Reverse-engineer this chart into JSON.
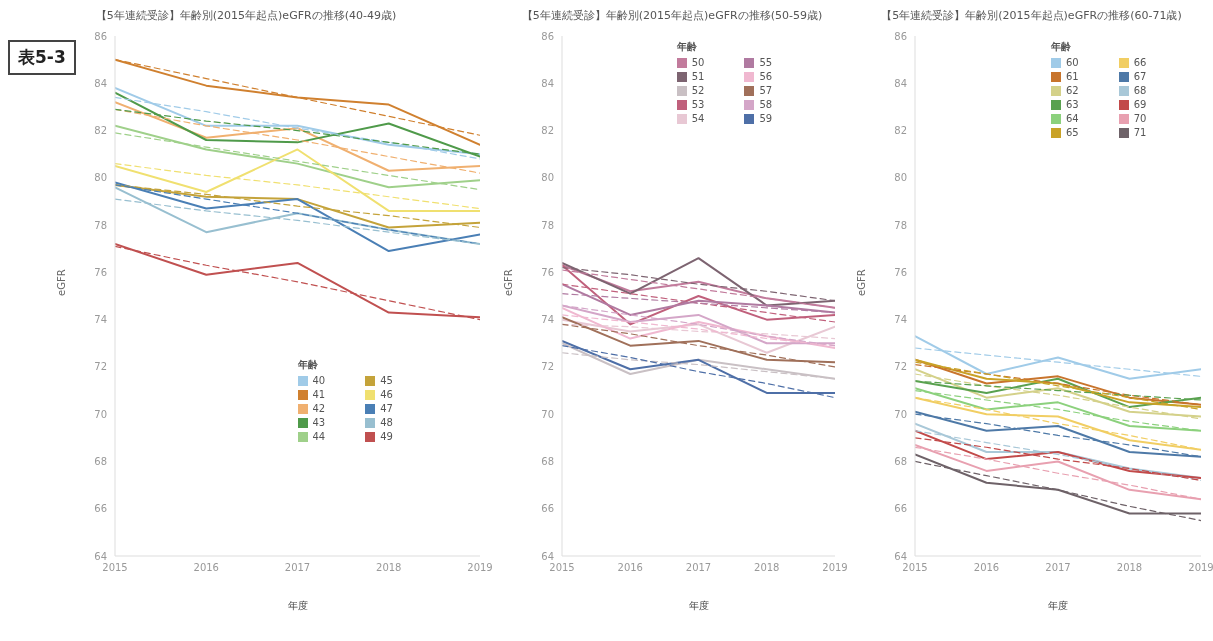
{
  "chart_data": [
    {
      "type": "line",
      "title": "【5年連続受診】年齢別(2015年起点)eGFRの推移(40-49歳)",
      "xlabel": "年度",
      "ylabel": "eGFR",
      "legend_title": "年齢",
      "legend": "bottom right",
      "annotations": [
        "表5-3"
      ],
      "x": [
        2015,
        2016,
        2017,
        2018,
        2019
      ],
      "xlim": [
        2015,
        2019
      ],
      "xticks": [
        2015,
        2016,
        2017,
        2018,
        2019
      ],
      "ylim": [
        64,
        86
      ],
      "yticks": [
        64,
        66,
        68,
        70,
        72,
        74,
        76,
        78,
        80,
        82,
        84,
        86
      ],
      "series": [
        {
          "name": "40",
          "color": "#a0cbe8",
          "values": [
            83.8,
            82.2,
            82.2,
            81.4,
            81.0
          ]
        },
        {
          "name": "41",
          "color": "#d0802f",
          "values": [
            85.0,
            83.9,
            83.4,
            83.1,
            81.4
          ]
        },
        {
          "name": "42",
          "color": "#f0b070",
          "values": [
            83.2,
            81.7,
            82.1,
            80.3,
            80.5
          ]
        },
        {
          "name": "43",
          "color": "#4f9a4a",
          "values": [
            83.6,
            81.6,
            81.5,
            82.3,
            80.9
          ]
        },
        {
          "name": "44",
          "color": "#9fd08a",
          "values": [
            82.2,
            81.2,
            80.6,
            79.6,
            79.9
          ]
        },
        {
          "name": "45",
          "color": "#c4a33a",
          "values": [
            79.7,
            79.2,
            79.1,
            77.9,
            78.1
          ]
        },
        {
          "name": "46",
          "color": "#f0e070",
          "values": [
            80.5,
            79.4,
            81.2,
            78.6,
            78.6
          ]
        },
        {
          "name": "47",
          "color": "#4a7fb5",
          "values": [
            79.8,
            78.7,
            79.1,
            76.9,
            77.6
          ]
        },
        {
          "name": "48",
          "color": "#98bfd0",
          "values": [
            79.6,
            77.7,
            78.5,
            77.8,
            77.2
          ]
        },
        {
          "name": "49",
          "color": "#c05050",
          "values": [
            77.2,
            75.9,
            76.4,
            74.3,
            74.1
          ]
        },
        {
          "color": "#a0cbe8",
          "line_style": "dashed",
          "values": [
            83.4,
            82.8,
            82.1,
            81.5,
            80.8
          ]
        },
        {
          "color": "#d0802f",
          "line_style": "dashed",
          "values": [
            85.0,
            84.2,
            83.4,
            82.6,
            81.8
          ]
        },
        {
          "color": "#f0b070",
          "line_style": "dashed",
          "values": [
            82.9,
            82.2,
            81.6,
            80.9,
            80.2
          ]
        },
        {
          "color": "#4f9a4a",
          "line_style": "dashed",
          "values": [
            82.9,
            82.4,
            82.0,
            81.5,
            81.0
          ]
        },
        {
          "color": "#9fd08a",
          "line_style": "dashed",
          "values": [
            81.9,
            81.3,
            80.7,
            80.1,
            79.5
          ]
        },
        {
          "color": "#c4a33a",
          "line_style": "dashed",
          "values": [
            79.7,
            79.3,
            78.8,
            78.4,
            77.9
          ]
        },
        {
          "color": "#f0e070",
          "line_style": "dashed",
          "values": [
            80.6,
            80.1,
            79.7,
            79.2,
            78.7
          ]
        },
        {
          "color": "#4a7fb5",
          "line_style": "dashed",
          "values": [
            79.7,
            79.1,
            78.5,
            77.8,
            77.2
          ]
        },
        {
          "color": "#98bfd0",
          "line_style": "dashed",
          "values": [
            79.1,
            78.6,
            78.2,
            77.7,
            77.2
          ]
        },
        {
          "color": "#c05050",
          "line_style": "dashed",
          "values": [
            77.1,
            76.3,
            75.6,
            74.8,
            74.0
          ]
        }
      ]
    },
    {
      "type": "line",
      "title": "【5年連続受診】年齢別(2015年起点)eGFRの推移(50-59歳)",
      "xlabel": "年度",
      "ylabel": "eGFR",
      "legend_title": "年齢",
      "legend": "top",
      "x": [
        2015,
        2016,
        2017,
        2018,
        2019
      ],
      "xlim": [
        2015,
        2019
      ],
      "xticks": [
        2015,
        2016,
        2017,
        2018,
        2019
      ],
      "ylim": [
        64,
        86
      ],
      "yticks": [
        64,
        66,
        68,
        70,
        72,
        74,
        76,
        78,
        80,
        82,
        84,
        86
      ],
      "series": [
        {
          "name": "50",
          "color": "#c27b9c",
          "values": [
            76.3,
            75.2,
            75.6,
            74.9,
            74.5
          ]
        },
        {
          "name": "51",
          "color": "#7d6471",
          "values": [
            76.4,
            75.1,
            76.6,
            74.6,
            74.8
          ]
        },
        {
          "name": "52",
          "color": "#c9c0c4",
          "values": [
            73.0,
            71.7,
            72.3,
            71.9,
            71.5
          ]
        },
        {
          "name": "53",
          "color": "#c0607c",
          "values": [
            76.3,
            73.8,
            75.0,
            74.0,
            74.2
          ]
        },
        {
          "name": "54",
          "color": "#e8c8d4",
          "values": [
            74.0,
            73.5,
            73.8,
            72.6,
            73.7
          ]
        },
        {
          "name": "55",
          "color": "#b07aa1",
          "values": [
            75.5,
            74.2,
            74.8,
            74.6,
            74.3
          ]
        },
        {
          "name": "56",
          "color": "#f0b8d0",
          "values": [
            74.5,
            73.2,
            73.9,
            73.3,
            72.8
          ]
        },
        {
          "name": "57",
          "color": "#a0705a",
          "values": [
            74.1,
            72.9,
            73.1,
            72.3,
            72.2
          ]
        },
        {
          "name": "58",
          "color": "#d4a6c8",
          "values": [
            74.6,
            73.9,
            74.2,
            73.0,
            73.0
          ]
        },
        {
          "name": "59",
          "color": "#4e6fa7",
          "values": [
            73.1,
            71.9,
            72.3,
            70.9,
            70.9
          ]
        },
        {
          "color": "#c27b9c",
          "line_style": "dashed",
          "values": [
            76.1,
            75.7,
            75.3,
            74.9,
            74.5
          ]
        },
        {
          "color": "#7d6471",
          "line_style": "dashed",
          "values": [
            76.2,
            75.9,
            75.5,
            75.2,
            74.8
          ]
        },
        {
          "color": "#c9c0c4",
          "line_style": "dashed",
          "values": [
            72.6,
            72.3,
            72.1,
            71.8,
            71.5
          ]
        },
        {
          "color": "#c0607c",
          "line_style": "dashed",
          "values": [
            75.5,
            75.1,
            74.7,
            74.3,
            73.9
          ]
        },
        {
          "color": "#e8c8d4",
          "line_style": "dashed",
          "values": [
            73.8,
            73.7,
            73.5,
            73.4,
            73.2
          ]
        },
        {
          "color": "#b07aa1",
          "line_style": "dashed",
          "values": [
            75.1,
            74.9,
            74.7,
            74.5,
            74.3
          ]
        },
        {
          "color": "#f0b8d0",
          "line_style": "dashed",
          "values": [
            74.2,
            73.9,
            73.6,
            73.2,
            72.9
          ]
        },
        {
          "color": "#a0705a",
          "line_style": "dashed",
          "values": [
            73.8,
            73.4,
            72.9,
            72.5,
            72.0
          ]
        },
        {
          "color": "#d4a6c8",
          "line_style": "dashed",
          "values": [
            74.6,
            74.2,
            73.8,
            73.3,
            72.9
          ]
        },
        {
          "color": "#4e6fa7",
          "line_style": "dashed",
          "values": [
            72.9,
            72.4,
            71.8,
            71.3,
            70.7
          ]
        }
      ]
    },
    {
      "type": "line",
      "title": "【5年連続受診】年齢別(2015年起点)eGFRの推移(60-71歳)",
      "xlabel": "年度",
      "ylabel": "eGFR",
      "legend_title": "年齢",
      "legend": "top right",
      "x": [
        2015,
        2016,
        2017,
        2018,
        2019
      ],
      "xlim": [
        2015,
        2019
      ],
      "xticks": [
        2015,
        2016,
        2017,
        2018,
        2019
      ],
      "ylim": [
        64,
        86
      ],
      "yticks": [
        64,
        66,
        68,
        70,
        72,
        74,
        76,
        78,
        80,
        82,
        84,
        86
      ],
      "series": [
        {
          "name": "60",
          "color": "#a0cbe8",
          "values": [
            73.3,
            71.7,
            72.4,
            71.5,
            71.9
          ]
        },
        {
          "name": "61",
          "color": "#c8742c",
          "values": [
            72.3,
            71.3,
            71.6,
            70.7,
            70.4
          ]
        },
        {
          "name": "62",
          "color": "#d4d18a",
          "values": [
            71.9,
            70.7,
            71.1,
            70.1,
            69.9
          ]
        },
        {
          "name": "63",
          "color": "#59a14f",
          "values": [
            71.4,
            70.9,
            71.5,
            70.3,
            70.7
          ]
        },
        {
          "name": "64",
          "color": "#8cd17d",
          "values": [
            71.1,
            70.2,
            70.5,
            69.5,
            69.3
          ]
        },
        {
          "name": "65",
          "color": "#c9a227",
          "values": [
            72.3,
            71.5,
            71.3,
            70.5,
            70.3
          ]
        },
        {
          "name": "66",
          "color": "#f1ce63",
          "values": [
            70.7,
            70.0,
            69.9,
            68.9,
            68.5
          ]
        },
        {
          "name": "67",
          "color": "#4e79a7",
          "values": [
            70.1,
            69.3,
            69.5,
            68.4,
            68.2
          ]
        },
        {
          "name": "68",
          "color": "#a9c8d8",
          "values": [
            69.6,
            68.4,
            68.4,
            67.7,
            67.3
          ]
        },
        {
          "name": "69",
          "color": "#c24a4a",
          "values": [
            69.3,
            68.1,
            68.4,
            67.6,
            67.3
          ]
        },
        {
          "name": "70",
          "color": "#e8a0b0",
          "values": [
            68.7,
            67.6,
            68.0,
            66.8,
            66.4
          ]
        },
        {
          "name": "71",
          "color": "#6e6268",
          "values": [
            68.3,
            67.1,
            66.8,
            65.8,
            65.8
          ]
        },
        {
          "color": "#a0cbe8",
          "line_style": "dashed",
          "values": [
            72.8,
            72.5,
            72.2,
            71.9,
            71.6
          ]
        },
        {
          "color": "#c8742c",
          "line_style": "dashed",
          "values": [
            72.1,
            71.7,
            71.3,
            70.8,
            70.4
          ]
        },
        {
          "color": "#d4d18a",
          "line_style": "dashed",
          "values": [
            71.7,
            71.2,
            70.8,
            70.3,
            69.8
          ]
        },
        {
          "color": "#59a14f",
          "line_style": "dashed",
          "values": [
            71.4,
            71.2,
            71.0,
            70.8,
            70.6
          ]
        },
        {
          "color": "#8cd17d",
          "line_style": "dashed",
          "values": [
            71.0,
            70.6,
            70.2,
            69.7,
            69.3
          ]
        },
        {
          "color": "#c9a227",
          "line_style": "dashed",
          "values": [
            72.2,
            71.7,
            71.2,
            70.7,
            70.2
          ]
        },
        {
          "color": "#f1ce63",
          "line_style": "dashed",
          "values": [
            70.7,
            70.2,
            69.6,
            69.1,
            68.5
          ]
        },
        {
          "color": "#4e79a7",
          "line_style": "dashed",
          "values": [
            70.0,
            69.6,
            69.1,
            68.7,
            68.2
          ]
        },
        {
          "color": "#a9c8d8",
          "line_style": "dashed",
          "values": [
            69.3,
            68.8,
            68.3,
            67.7,
            67.2
          ]
        },
        {
          "color": "#c24a4a",
          "line_style": "dashed",
          "values": [
            69.0,
            68.6,
            68.1,
            67.7,
            67.2
          ]
        },
        {
          "color": "#e8a0b0",
          "line_style": "dashed",
          "values": [
            68.6,
            68.1,
            67.5,
            67.0,
            66.4
          ]
        },
        {
          "color": "#6e6268",
          "line_style": "dashed",
          "values": [
            68.0,
            67.4,
            66.8,
            66.1,
            65.5
          ]
        }
      ]
    }
  ]
}
